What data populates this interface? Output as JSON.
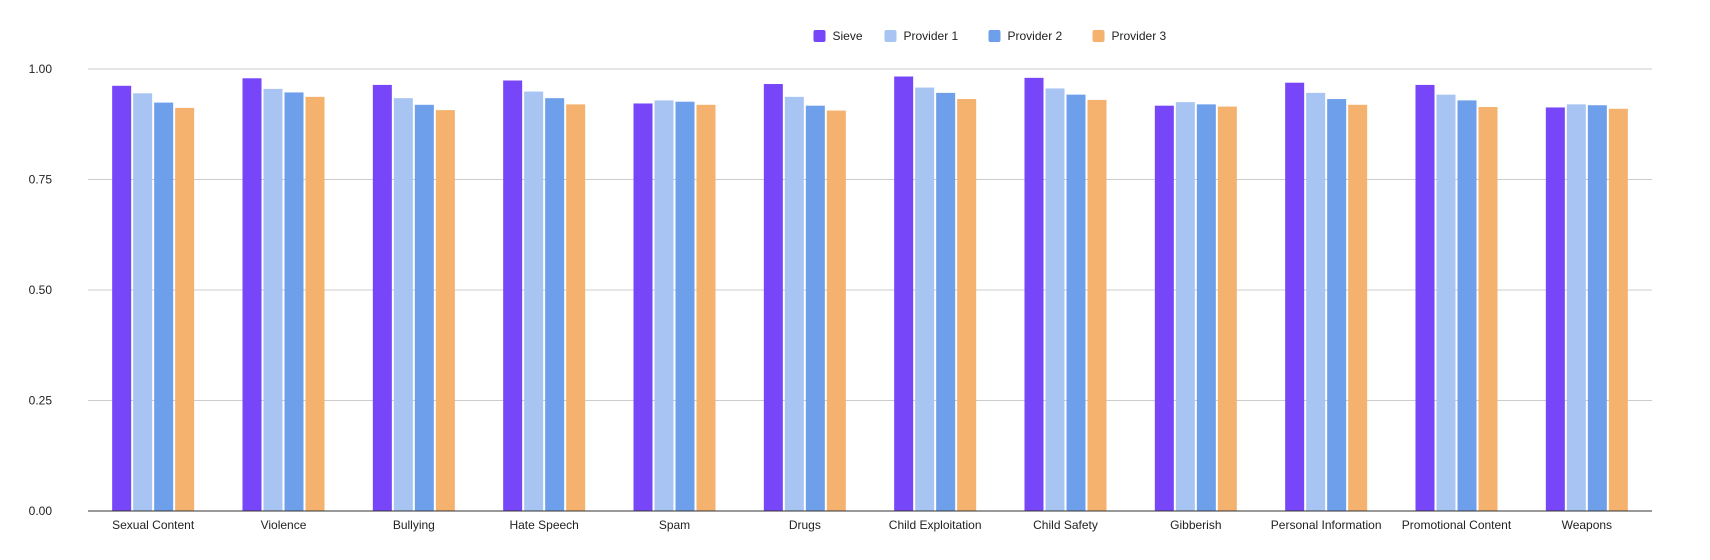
{
  "chart_data": {
    "type": "bar",
    "categories": [
      "Sexual Content",
      "Violence",
      "Bullying",
      "Hate Speech",
      "Spam",
      "Drugs",
      "Child Exploitation",
      "Child Safety",
      "Gibberish",
      "Personal Information",
      "Promotional Content",
      "Weapons"
    ],
    "series": [
      {
        "name": "Sieve",
        "color": "#7646f8",
        "values": [
          0.962,
          0.979,
          0.964,
          0.974,
          0.922,
          0.966,
          0.983,
          0.98,
          0.917,
          0.969,
          0.964,
          0.913
        ]
      },
      {
        "name": "Provider 1",
        "color": "#a8c4f2",
        "values": [
          0.945,
          0.955,
          0.934,
          0.949,
          0.929,
          0.937,
          0.958,
          0.956,
          0.925,
          0.946,
          0.942,
          0.92
        ]
      },
      {
        "name": "Provider 2",
        "color": "#6e9fea",
        "values": [
          0.924,
          0.947,
          0.919,
          0.934,
          0.926,
          0.917,
          0.946,
          0.942,
          0.92,
          0.932,
          0.929,
          0.918
        ]
      },
      {
        "name": "Provider 3",
        "color": "#f4b26e",
        "values": [
          0.912,
          0.937,
          0.907,
          0.92,
          0.919,
          0.906,
          0.932,
          0.93,
          0.915,
          0.919,
          0.914,
          0.91
        ]
      }
    ],
    "ylim": [
      0,
      1
    ],
    "yticks": [
      "0.00",
      "0.25",
      "0.50",
      "0.75",
      "1.00"
    ],
    "ytick_values": [
      0,
      0.25,
      0.5,
      0.75,
      1.0
    ],
    "grid": true,
    "legend_position": "top-center"
  }
}
